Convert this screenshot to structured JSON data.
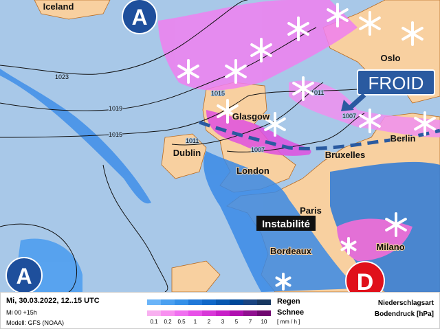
{
  "map": {
    "places": [
      {
        "name": "Iceland"
      },
      {
        "name": "Oslo"
      },
      {
        "name": "Glasgow"
      },
      {
        "name": "Dublin"
      },
      {
        "name": "London"
      },
      {
        "name": "Bruxelles"
      },
      {
        "name": "Berlin"
      },
      {
        "name": "Paris"
      },
      {
        "name": "Bordeaux"
      },
      {
        "name": "Milano"
      }
    ],
    "isobar_labels": [
      "1023",
      "1019",
      "1015",
      "1015",
      "1011",
      "1007",
      "1011",
      "1007"
    ],
    "high_label": "A",
    "low_label": "D",
    "callout_froid": "FROID",
    "callout_instability": "Instabilité",
    "colors": {
      "sea": "#a8c8e8",
      "land": "#f8d0a0",
      "high": "#1e4f9c",
      "low": "#e0101a",
      "front": "#2a5aa0"
    }
  },
  "legend": {
    "date": "Mi, 30.03.2022, 12..15 UTC",
    "run": "Mi 00 +15h",
    "model": "Modell: GFS (NOAA)",
    "rain_label": "Regen",
    "snow_label": "Schnee",
    "unit": "[ mm / h ]",
    "ticks": [
      "0.1",
      "0.2",
      "0.5",
      "1",
      "2",
      "3",
      "5",
      "7",
      "10"
    ],
    "rain_colors": [
      "#6ab4f8",
      "#4aa0f0",
      "#3490e8",
      "#2078d8",
      "#1068c8",
      "#0858b0",
      "#004898",
      "#1a4480",
      "#183860"
    ],
    "snow_colors": [
      "#f8b0f0",
      "#f890f0",
      "#f070f0",
      "#e850e8",
      "#d838d8",
      "#c820c8",
      "#b010b0",
      "#901090",
      "#700870"
    ],
    "type_title": "Niederschlagsart",
    "pressure_title": "Bodendruck [hPa]"
  }
}
